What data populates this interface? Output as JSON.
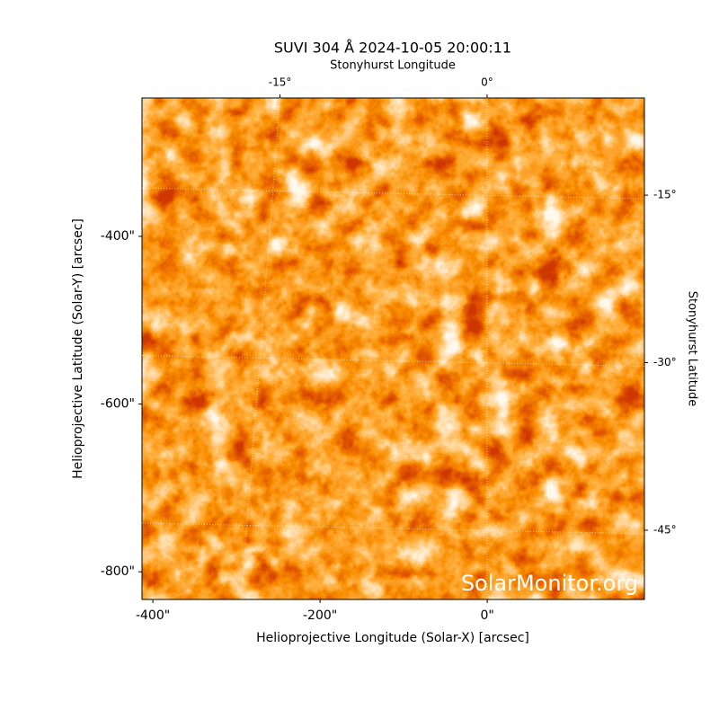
{
  "chart_data": {
    "type": "image",
    "title": "SUVI 304 Å 2024-10-05 20:00:11",
    "xlabel": "Helioprojective Longitude (Solar-X) [arcsec]",
    "ylabel": "Helioprojective Latitude (Solar-Y) [arcsec]",
    "xlim": [
      -413,
      188
    ],
    "xticks": [
      {
        "value": -400,
        "label": "-400\""
      },
      {
        "value": -200,
        "label": "-200\""
      },
      {
        "value": 0,
        "label": "0\""
      }
    ],
    "ylim": [
      -833,
      -235
    ],
    "yticks": [
      {
        "value": -400,
        "label": "-400\""
      },
      {
        "value": -600,
        "label": "-600\""
      },
      {
        "value": -800,
        "label": "-800\""
      }
    ],
    "x2label": "Stonyhurst Longitude",
    "x2lim": [
      -25.0,
      11.4
    ],
    "x2ticks": [
      {
        "value": -15,
        "label": "-15°"
      },
      {
        "value": 0,
        "label": "0°"
      }
    ],
    "y2label": "Stonyhurst Latitude",
    "y2lim": [
      -51.2,
      -6.3
    ],
    "y2ticks": [
      {
        "value": -15,
        "label": "-15°"
      },
      {
        "value": -30,
        "label": "-30°"
      },
      {
        "value": -45,
        "label": "-45°"
      }
    ],
    "grid": true,
    "watermark": "SolarMonitor.org"
  }
}
